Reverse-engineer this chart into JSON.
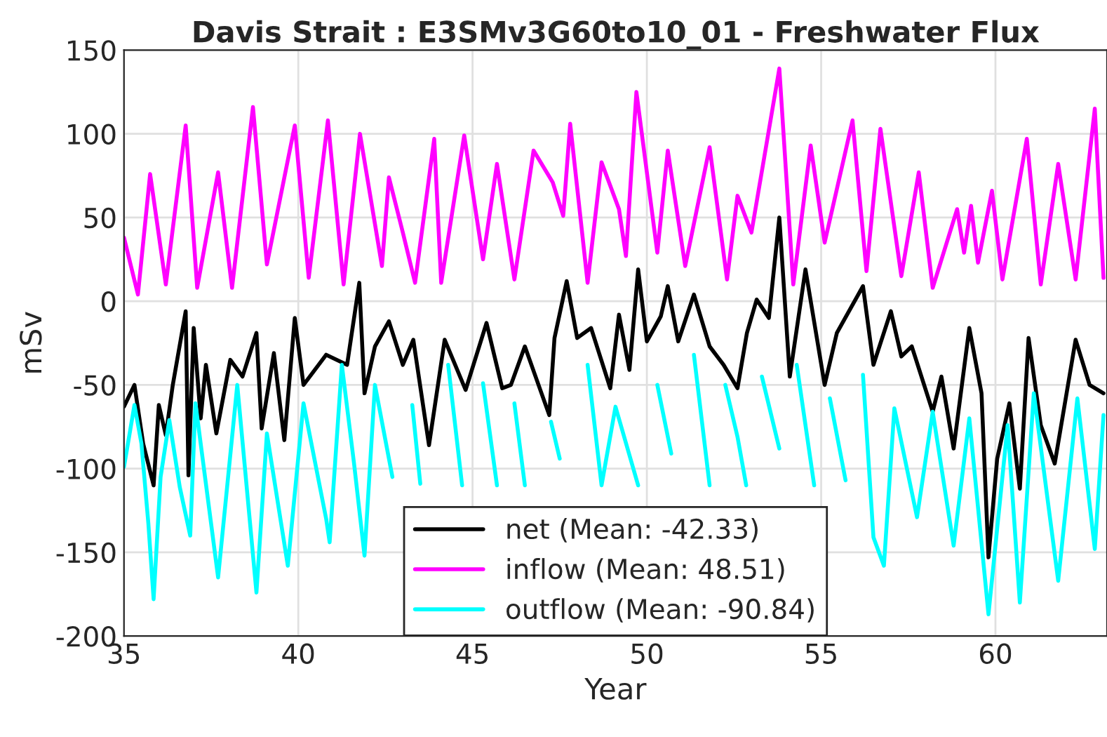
{
  "chart_data": {
    "type": "line",
    "title": "Davis Strait : E3SMv3G60to10_01 - Freshwater Flux",
    "xlabel": "Year",
    "ylabel": "mSv",
    "xlim": [
      35,
      63.2
    ],
    "xticks": [
      35,
      40,
      45,
      50,
      55,
      60
    ],
    "ylim": [
      -200,
      150
    ],
    "yticks": [
      -200,
      -150,
      -100,
      -50,
      0,
      50,
      100,
      150
    ],
    "grid": true,
    "legend": "bottom",
    "line_style": "solid",
    "series": [
      {
        "name": "net (Mean: -42.33)",
        "color": "#000000",
        "x": [
          35,
          35.3,
          35.55,
          35.85,
          36.0,
          36.2,
          36.4,
          36.77,
          36.85,
          37.0,
          37.2,
          37.35,
          37.65,
          38.05,
          38.4,
          38.8,
          38.95,
          39.3,
          39.6,
          39.9,
          40.15,
          40.8,
          41.4,
          41.75,
          41.9,
          42.2,
          42.6,
          43.0,
          43.3,
          43.75,
          44.2,
          44.8,
          45.4,
          45.85,
          46.1,
          46.5,
          47.2,
          47.35,
          47.7,
          48.0,
          48.4,
          48.95,
          49.2,
          49.5,
          49.75,
          50.0,
          50.4,
          50.6,
          50.9,
          51.35,
          51.8,
          52.2,
          52.6,
          52.87,
          53.15,
          53.5,
          53.8,
          54.1,
          54.55,
          55.1,
          55.45,
          56.2,
          56.5,
          57.0,
          57.3,
          57.6,
          58.2,
          58.45,
          58.8,
          59.25,
          59.6,
          59.8,
          60.05,
          60.4,
          60.7,
          60.95,
          61.3,
          61.7,
          62.3,
          62.7,
          63.1
        ],
        "values": [
          -63,
          -50,
          -85,
          -110,
          -62,
          -80,
          -50,
          -6,
          -104,
          -16,
          -70,
          -38,
          -79,
          -35,
          -45,
          -19,
          -76,
          -31,
          -83,
          -10,
          -50,
          -32,
          -38,
          11,
          -55,
          -27,
          -12,
          -38,
          -23,
          -86,
          -23,
          -53,
          -13,
          -52,
          -50,
          -27,
          -68,
          -22,
          12,
          -22,
          -16,
          -52,
          -8,
          -41,
          19,
          -24,
          -9,
          9,
          -24,
          4,
          -27,
          -38,
          -52,
          -19,
          1,
          -10,
          50,
          -45,
          19,
          -50,
          -19,
          9,
          -38,
          -6,
          -33,
          -27,
          -66,
          -45,
          -88,
          -16,
          -55,
          -153,
          -94,
          -61,
          -112,
          -22,
          -74,
          -97,
          -23,
          -50,
          -55
        ]
      },
      {
        "name": "inflow (Mean: 48.51)",
        "color": "#ff00ff",
        "x": [
          35,
          35.4,
          35.75,
          36.2,
          36.77,
          37.1,
          37.7,
          38.1,
          38.7,
          39.1,
          39.9,
          40.3,
          40.85,
          41.3,
          41.77,
          42.4,
          42.6,
          43.0,
          43.35,
          43.9,
          44.1,
          44.76,
          45.3,
          45.7,
          46.2,
          46.75,
          47.3,
          47.6,
          47.8,
          48.3,
          48.7,
          49.2,
          49.4,
          49.7,
          50.3,
          50.6,
          51.1,
          51.8,
          52.3,
          52.6,
          53.0,
          53.8,
          54.2,
          54.7,
          55.1,
          55.9,
          56.3,
          56.7,
          57.3,
          57.8,
          58.2,
          58.9,
          59.1,
          59.3,
          59.5,
          59.9,
          60.2,
          60.9,
          61.3,
          61.8,
          62.3,
          62.85,
          63.1
        ],
        "values": [
          38,
          4,
          76,
          10,
          105,
          8,
          77,
          8,
          116,
          22,
          105,
          14,
          108,
          10,
          100,
          21,
          74,
          41,
          11,
          97,
          11,
          99,
          25,
          82,
          13,
          90,
          71,
          51,
          106,
          11,
          83,
          55,
          27,
          125,
          29,
          90,
          21,
          92,
          13,
          63,
          41,
          139,
          10,
          93,
          35,
          108,
          18,
          103,
          15,
          77,
          8,
          55,
          29,
          57,
          23,
          66,
          13,
          97,
          10,
          82,
          13,
          115,
          14
        ]
      },
      {
        "name": "outflow (Mean: -90.84)",
        "color": "#00ffff",
        "x": [
          35,
          35.3,
          35.5,
          35.7,
          35.85,
          36.05,
          36.3,
          36.6,
          36.9,
          37.05,
          37.5,
          37.7,
          38.25,
          38.8,
          39.1,
          39.7,
          40.15,
          40.8,
          40.9,
          41.25,
          41.6,
          41.9,
          42.2,
          42.7,
          43.0,
          43.27,
          43.5,
          43.75,
          44.3,
          44.7,
          45.0,
          45.3,
          45.7,
          45.95,
          46.2,
          46.5,
          46.8,
          47.25,
          47.5,
          47.8,
          48.3,
          48.7,
          49.1,
          49.75,
          50.0,
          50.3,
          50.7,
          51.0,
          51.35,
          51.8,
          52.0,
          52.25,
          52.6,
          52.85,
          53.05,
          53.3,
          53.8,
          54.0,
          54.3,
          54.8,
          55.0,
          55.25,
          55.7,
          55.9,
          56.2,
          56.5,
          56.8,
          57.1,
          57.75,
          58.2,
          58.8,
          59.25,
          59.8,
          60.35,
          60.7,
          61.1,
          61.8,
          62.35,
          62.85,
          63.1
        ],
        "values": [
          -99,
          -62,
          -85,
          -133,
          -178,
          -105,
          -71,
          -111,
          -140,
          -61,
          -133,
          -165,
          -50,
          -174,
          -79,
          -158,
          -61,
          -130,
          -144,
          -38,
          -97,
          -152,
          -50,
          -105,
          null,
          -62,
          -109,
          null,
          -38,
          -110,
          null,
          -49,
          -110,
          null,
          -61,
          -110,
          null,
          -72,
          -94,
          null,
          -38,
          -110,
          -63,
          -110,
          null,
          -50,
          -91,
          null,
          -32,
          -110,
          null,
          -50,
          -81,
          -110,
          null,
          -45,
          -88,
          null,
          -38,
          -110,
          null,
          -58,
          -107,
          null,
          -44,
          -141,
          -158,
          -64,
          -129,
          -66,
          -146,
          -70,
          -187,
          -74,
          -180,
          -55,
          -167,
          -58,
          -148,
          -68
        ]
      }
    ]
  }
}
